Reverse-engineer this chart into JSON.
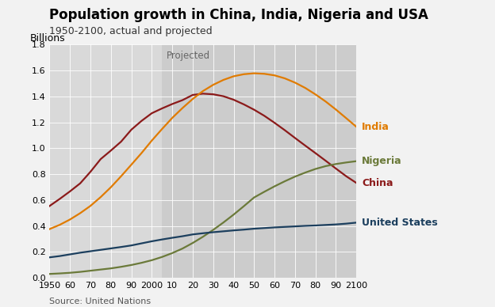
{
  "title": "Population growth in China, India, Nigeria and USA",
  "subtitle": "1950-2100, actual and projected",
  "ylabel": "Billions",
  "source": "Source: United Nations",
  "projected_label": "Projected",
  "projection_start": 2005,
  "background_color": "#f2f2f2",
  "plot_bg_color": "#d9d9d9",
  "proj_bg_color": "#cccccc",
  "years": [
    1950,
    1955,
    1960,
    1965,
    1970,
    1975,
    1980,
    1985,
    1990,
    1995,
    2000,
    2005,
    2010,
    2015,
    2020,
    2025,
    2030,
    2035,
    2040,
    2045,
    2050,
    2055,
    2060,
    2065,
    2070,
    2075,
    2080,
    2085,
    2090,
    2095,
    2100
  ],
  "china": [
    0.554,
    0.609,
    0.667,
    0.729,
    0.818,
    0.916,
    0.982,
    1.051,
    1.143,
    1.211,
    1.27,
    1.307,
    1.341,
    1.371,
    1.411,
    1.421,
    1.416,
    1.401,
    1.374,
    1.338,
    1.297,
    1.25,
    1.196,
    1.139,
    1.079,
    1.02,
    0.962,
    0.903,
    0.843,
    0.784,
    0.732
  ],
  "india": [
    0.376,
    0.409,
    0.45,
    0.499,
    0.555,
    0.623,
    0.699,
    0.784,
    0.873,
    0.963,
    1.059,
    1.148,
    1.234,
    1.31,
    1.38,
    1.441,
    1.489,
    1.527,
    1.555,
    1.571,
    1.578,
    1.574,
    1.562,
    1.539,
    1.506,
    1.465,
    1.415,
    1.36,
    1.298,
    1.232,
    1.165
  ],
  "nigeria": [
    0.03,
    0.034,
    0.039,
    0.046,
    0.055,
    0.064,
    0.073,
    0.085,
    0.099,
    0.116,
    0.136,
    0.161,
    0.191,
    0.226,
    0.269,
    0.317,
    0.37,
    0.427,
    0.488,
    0.553,
    0.62,
    0.664,
    0.706,
    0.745,
    0.781,
    0.812,
    0.84,
    0.862,
    0.878,
    0.89,
    0.9
  ],
  "usa": [
    0.158,
    0.168,
    0.181,
    0.194,
    0.205,
    0.216,
    0.227,
    0.238,
    0.25,
    0.266,
    0.282,
    0.296,
    0.309,
    0.321,
    0.335,
    0.344,
    0.352,
    0.359,
    0.366,
    0.372,
    0.379,
    0.384,
    0.389,
    0.393,
    0.397,
    0.401,
    0.404,
    0.408,
    0.412,
    0.418,
    0.426
  ],
  "china_color": "#8B1A1A",
  "india_color": "#E07B00",
  "nigeria_color": "#6B7A3A",
  "usa_color": "#1C3F5E",
  "title_fontsize": 12,
  "subtitle_fontsize": 9,
  "label_fontsize": 9,
  "tick_fontsize": 8,
  "source_fontsize": 8,
  "xlim": [
    1950,
    2100
  ],
  "ylim": [
    0,
    1.8
  ],
  "yticks": [
    0,
    0.2,
    0.4,
    0.6,
    0.8,
    1.0,
    1.2,
    1.4,
    1.6,
    1.8
  ],
  "xtick_positions": [
    1950,
    1960,
    1970,
    1980,
    1990,
    2000,
    2010,
    2020,
    2030,
    2040,
    2050,
    2060,
    2070,
    2080,
    2090,
    2100
  ],
  "xtick_labels": [
    "1950",
    "60",
    "70",
    "80",
    "90",
    "2000",
    "10",
    "20",
    "30",
    "40",
    "50",
    "60",
    "70",
    "80",
    "90",
    "2100"
  ]
}
